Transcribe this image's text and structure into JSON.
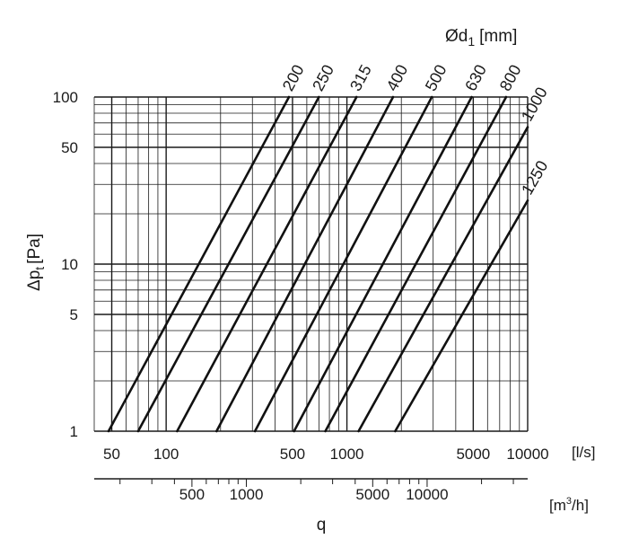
{
  "chart_data": {
    "type": "line",
    "title": "",
    "x_scale": "log",
    "y_scale": "log",
    "grid": true,
    "xlim": [
      40,
      10000
    ],
    "ylim": [
      1,
      100
    ],
    "xlabel": "q",
    "ylabel_main": "Δp",
    "ylabel_sub": "t",
    "ylabel_unit": "[Pa]",
    "x_unit_ls": "[l/s]",
    "x_unit_m3h_prefix": "[m",
    "x_unit_m3h_sup": "3",
    "x_unit_m3h_suffix": "/h]",
    "legend_title_main": "Ød",
    "legend_title_sub": "1",
    "legend_title_unit": "[mm]",
    "yticks": [
      {
        "value": 1,
        "label": "1"
      },
      {
        "value": 5,
        "label": "5"
      },
      {
        "value": 10,
        "label": "10"
      },
      {
        "value": 50,
        "label": "50"
      },
      {
        "value": 100,
        "label": "100"
      }
    ],
    "xticks_ls": [
      {
        "value": 50,
        "label": "50"
      },
      {
        "value": 100,
        "label": "100"
      },
      {
        "value": 500,
        "label": "500"
      },
      {
        "value": 1000,
        "label": "1000"
      },
      {
        "value": 5000,
        "label": "5000"
      },
      {
        "value": 10000,
        "label": "10000"
      }
    ],
    "xticks_m3h": [
      {
        "value": 500,
        "label": "500"
      },
      {
        "value": 1000,
        "label": "1000"
      },
      {
        "value": 5000,
        "label": "5000"
      },
      {
        "value": 10000,
        "label": "10000"
      }
    ],
    "series": [
      {
        "name": "200",
        "points": [
          [
            48,
            1
          ],
          [
            478,
            100
          ]
        ]
      },
      {
        "name": "250",
        "points": [
          [
            70,
            1
          ],
          [
            700,
            100
          ]
        ]
      },
      {
        "name": "315",
        "points": [
          [
            115,
            1
          ],
          [
            1130,
            100
          ]
        ]
      },
      {
        "name": "400",
        "points": [
          [
            190,
            1
          ],
          [
            1800,
            100
          ]
        ]
      },
      {
        "name": "500",
        "points": [
          [
            310,
            1
          ],
          [
            2950,
            100
          ]
        ]
      },
      {
        "name": "630",
        "points": [
          [
            510,
            1
          ],
          [
            4900,
            100
          ]
        ]
      },
      {
        "name": "800",
        "points": [
          [
            760,
            1
          ],
          [
            7600,
            100
          ]
        ]
      },
      {
        "name": "1000",
        "points": [
          [
            1160,
            1
          ],
          [
            10000,
            66
          ]
        ]
      },
      {
        "name": "1250",
        "points": [
          [
            1850,
            1
          ],
          [
            10000,
            24
          ]
        ]
      }
    ]
  }
}
